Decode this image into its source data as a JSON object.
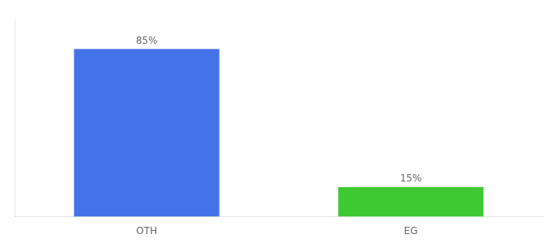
{
  "chart_data": {
    "type": "bar",
    "categories": [
      "OTH",
      "EG"
    ],
    "values": [
      85,
      15
    ],
    "value_labels": [
      "85%",
      "15%"
    ],
    "colors": [
      "#4472e8",
      "#3ec832"
    ],
    "ylim": [
      0,
      100
    ],
    "grid": false,
    "tick_labels": "x",
    "data_labels": true
  }
}
